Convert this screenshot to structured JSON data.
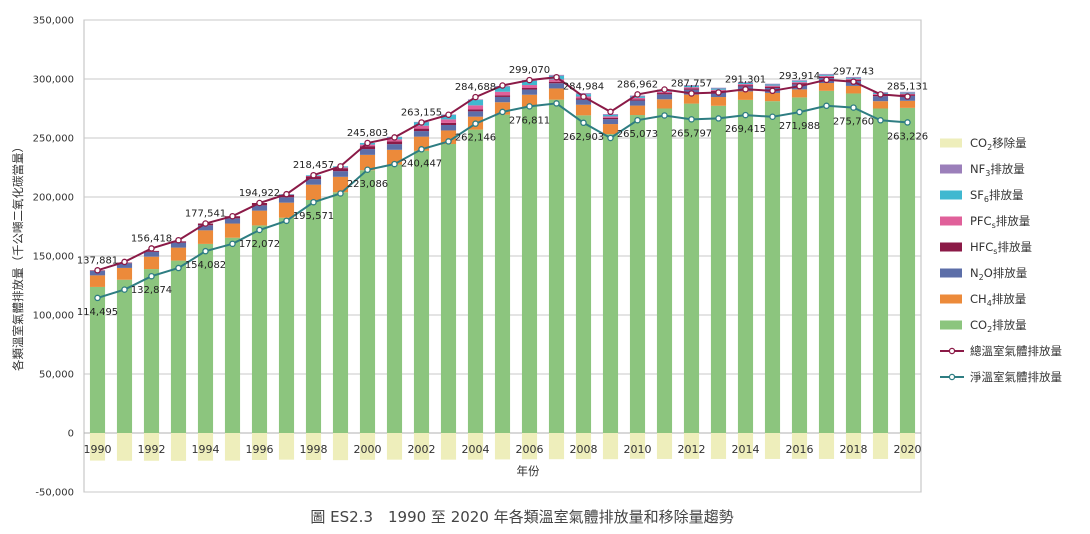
{
  "chart_data": {
    "type": "bar",
    "title": "",
    "caption": "圖 ES2.3　1990 至 2020 年各類溫室氣體排放量和移除量趨勢",
    "xlabel": "年份",
    "ylabel": "各類溫室氣體排放量（千公噸二氧化碳當量）",
    "ylim": [
      -50000,
      350000
    ],
    "yticks": [
      "350,000",
      "300,000",
      "250,000",
      "200,000",
      "150,000",
      "100,000",
      "50,000",
      "0",
      "-50,000"
    ],
    "ytick_values": [
      350000,
      300000,
      250000,
      200000,
      150000,
      100000,
      50000,
      0,
      -50000
    ],
    "grid": true,
    "legend_position": "right",
    "categories": [
      "1990",
      "1991",
      "1992",
      "1993",
      "1994",
      "1995",
      "1996",
      "1997",
      "1998",
      "1999",
      "2000",
      "2001",
      "2002",
      "2003",
      "2004",
      "2005",
      "2006",
      "2007",
      "2008",
      "2009",
      "2010",
      "2011",
      "2012",
      "2013",
      "2014",
      "2015",
      "2016",
      "2017",
      "2018",
      "2019",
      "2020"
    ],
    "x_tick_labels": [
      "1990",
      "",
      "1992",
      "",
      "1994",
      "",
      "1996",
      "",
      "1998",
      "",
      "2000",
      "",
      "2002",
      "",
      "2004",
      "",
      "2006",
      "",
      "2008",
      "",
      "2010",
      "",
      "2012",
      "",
      "2014",
      "",
      "2016",
      "",
      "2018",
      "",
      "2020"
    ],
    "legend_order": [
      "co2_removal",
      "nf3",
      "sf6",
      "pfcs",
      "hfcs",
      "n2o",
      "ch4",
      "co2",
      "total",
      "net"
    ],
    "colors": {
      "co2_removal": "#eeeebb",
      "nf3": "#9b7fba",
      "sf6": "#3fb8d0",
      "pfcs": "#e0609a",
      "hfcs": "#8b1a47",
      "n2o": "#5c6ea8",
      "ch4": "#ec8a3a",
      "co2": "#8cc57e",
      "total": "#8b1a47",
      "net": "#2e7d82"
    },
    "series": [
      {
        "key": "co2_removal",
        "name": "CO₂移除量",
        "name_parts": [
          "CO",
          "2",
          "移除量"
        ],
        "values": [
          -23386,
          -23500,
          -23544,
          -23600,
          -23459,
          -23400,
          -22850,
          -22600,
          -22886,
          -23000,
          -22717,
          -22600,
          -22708,
          -22600,
          -22542,
          -22400,
          -22259,
          -22200,
          -22081,
          -22200,
          -21889,
          -22000,
          -21960,
          -22000,
          -21886,
          -22000,
          -21926,
          -22000,
          -21983,
          -22000,
          -21905
        ]
      },
      {
        "key": "nf3",
        "name": "NF₃排放量",
        "name_parts": [
          "NF",
          "3",
          "排放量"
        ],
        "values": [
          0,
          0,
          0,
          0,
          0,
          0,
          0,
          0,
          0,
          0,
          0,
          100,
          200,
          300,
          500,
          600,
          700,
          800,
          800,
          700,
          800,
          800,
          700,
          700,
          700,
          700,
          700,
          700,
          700,
          700,
          700
        ]
      },
      {
        "key": "sf6",
        "name": "SF₆排放量",
        "name_parts": [
          "SF",
          "6",
          "排放量"
        ],
        "values": [
          0,
          0,
          0,
          0,
          0,
          0,
          0,
          300,
          600,
          900,
          1400,
          2000,
          3000,
          3800,
          4500,
          4300,
          3500,
          3000,
          2000,
          1300,
          1200,
          1100,
          1000,
          1000,
          900,
          900,
          900,
          900,
          800,
          800,
          800
        ]
      },
      {
        "key": "pfcs",
        "name": "PFCs排放量",
        "name_parts": [
          "PFC",
          "s",
          "排放量"
        ],
        "values": [
          0,
          0,
          0,
          0,
          0,
          0,
          0,
          100,
          300,
          700,
          1300,
          1800,
          2500,
          3000,
          3500,
          3000,
          2500,
          2000,
          1500,
          1200,
          1200,
          1100,
          1000,
          900,
          900,
          900,
          800,
          800,
          800,
          800,
          800
        ]
      },
      {
        "key": "hfcs",
        "name": "HFCs排放量",
        "name_parts": [
          "HFC",
          "s",
          "排放量"
        ],
        "values": [
          400,
          500,
          800,
          1100,
          1500,
          1800,
          2000,
          2200,
          2400,
          2500,
          2500,
          2300,
          2100,
          1800,
          1600,
          1400,
          1300,
          1300,
          1200,
          1100,
          1100,
          1100,
          1100,
          1100,
          1100,
          1100,
          1100,
          1100,
          1100,
          1100,
          1100
        ]
      },
      {
        "key": "n2o",
        "name": "N₂O排放量",
        "name_parts": [
          "N",
          "2",
          "O排放量"
        ],
        "values": [
          3900,
          4000,
          4100,
          4200,
          4300,
          4400,
          4500,
          4600,
          4700,
          4800,
          4900,
          4800,
          4700,
          4600,
          4500,
          4500,
          4400,
          4400,
          4300,
          4200,
          4200,
          4200,
          4200,
          4200,
          4200,
          4200,
          4200,
          4200,
          4200,
          4200,
          4200
        ]
      },
      {
        "key": "ch4",
        "name": "CH₄排放量",
        "name_parts": [
          "CH",
          "4",
          "排放量"
        ],
        "values": [
          9800,
          10000,
          10500,
          11000,
          11500,
          12000,
          12500,
          12800,
          13000,
          13100,
          13000,
          12500,
          12000,
          11500,
          11000,
          10500,
          10000,
          9500,
          9000,
          8500,
          8000,
          7800,
          7600,
          7400,
          7200,
          7000,
          6800,
          6600,
          6400,
          6200,
          6000
        ]
      },
      {
        "key": "co2",
        "name": "CO₂排放量",
        "name_parts": [
          "CO",
          "2",
          "排放量"
        ],
        "values": [
          123781,
          129900,
          138918,
          146100,
          160241,
          165500,
          175922,
          182400,
          197457,
          204000,
          222703,
          227500,
          239155,
          244900,
          257088,
          269800,
          276670,
          282500,
          269184,
          253300,
          269462,
          275000,
          279157,
          277300,
          282301,
          281200,
          284414,
          290000,
          287743,
          275000,
          275531
        ]
      },
      {
        "key": "total",
        "name": "總溫室氣體排放量",
        "line": true,
        "values": [
          137881,
          145000,
          156418,
          163400,
          177541,
          183700,
          194922,
          202400,
          218457,
          226000,
          245803,
          250500,
          263155,
          269700,
          284688,
          294500,
          299070,
          301500,
          284984,
          272200,
          286962,
          291100,
          287757,
          288600,
          291301,
          290000,
          293914,
          299300,
          297743,
          287000,
          285131
        ]
      },
      {
        "key": "net",
        "name": "淨溫室氣體排放量",
        "line": true,
        "values": [
          114495,
          121500,
          132874,
          139800,
          154082,
          160300,
          172072,
          179800,
          195571,
          203000,
          223086,
          227900,
          240447,
          247100,
          262146,
          272100,
          276811,
          279300,
          262903,
          250000,
          265073,
          269100,
          265797,
          266600,
          269415,
          268000,
          271988,
          277300,
          275760,
          265000,
          263226
        ]
      }
    ],
    "data_labels": {
      "total": [
        {
          "i": 0,
          "text": "137,881"
        },
        {
          "i": 2,
          "text": "156,418"
        },
        {
          "i": 4,
          "text": "177,541"
        },
        {
          "i": 6,
          "text": "194,922"
        },
        {
          "i": 8,
          "text": "218,457"
        },
        {
          "i": 10,
          "text": "245,803"
        },
        {
          "i": 12,
          "text": "263,155"
        },
        {
          "i": 14,
          "text": "284,688"
        },
        {
          "i": 16,
          "text": "299,070"
        },
        {
          "i": 18,
          "text": "284,984"
        },
        {
          "i": 20,
          "text": "286,962"
        },
        {
          "i": 22,
          "text": "287,757"
        },
        {
          "i": 24,
          "text": "291,301"
        },
        {
          "i": 26,
          "text": "293,914"
        },
        {
          "i": 28,
          "text": "297,743"
        },
        {
          "i": 30,
          "text": "285,131"
        }
      ],
      "net": [
        {
          "i": 0,
          "text": "114,495"
        },
        {
          "i": 2,
          "text": "132,874"
        },
        {
          "i": 4,
          "text": "154,082"
        },
        {
          "i": 6,
          "text": "172,072"
        },
        {
          "i": 8,
          "text": "195,571"
        },
        {
          "i": 10,
          "text": "223,086"
        },
        {
          "i": 12,
          "text": "240,447"
        },
        {
          "i": 14,
          "text": "262,146"
        },
        {
          "i": 16,
          "text": "276,811"
        },
        {
          "i": 18,
          "text": "262,903"
        },
        {
          "i": 20,
          "text": "265,073"
        },
        {
          "i": 22,
          "text": "265,797"
        },
        {
          "i": 24,
          "text": "269,415"
        },
        {
          "i": 26,
          "text": "271,988"
        },
        {
          "i": 28,
          "text": "275,760"
        },
        {
          "i": 30,
          "text": "263,226"
        }
      ]
    }
  }
}
